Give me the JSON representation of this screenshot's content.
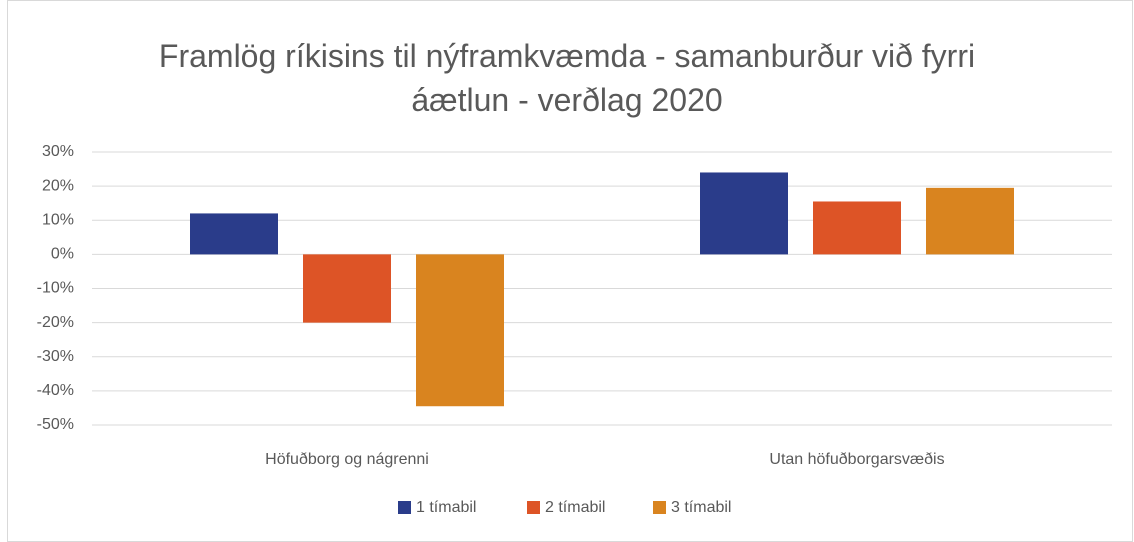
{
  "chart_data": {
    "type": "bar",
    "title": "Framlög ríkisins til nýframkvæmda - samanburður við fyrri áætlun - verðlag 2020",
    "categories": [
      "Höfuðborg og nágrenni",
      "Utan höfuðborgarsvæðis"
    ],
    "series": [
      {
        "name": "1 tímabil",
        "color": "#2a3c8a",
        "values": [
          12,
          24
        ]
      },
      {
        "name": "2 tímabil",
        "color": "#dd5426",
        "values": [
          -20,
          15.5
        ]
      },
      {
        "name": "3 tímabil",
        "color": "#d9841f",
        "values": [
          -44.5,
          19.5
        ]
      }
    ],
    "ylim": [
      -50,
      30
    ],
    "yticks": [
      {
        "value": 30,
        "label": "30%"
      },
      {
        "value": 20,
        "label": "20%"
      },
      {
        "value": 10,
        "label": "10%"
      },
      {
        "value": 0,
        "label": "0%"
      },
      {
        "value": -10,
        "label": "-10%"
      },
      {
        "value": -20,
        "label": "-20%"
      },
      {
        "value": -30,
        "label": "-30%"
      },
      {
        "value": -40,
        "label": "-40%"
      },
      {
        "value": -50,
        "label": "-50%"
      }
    ],
    "grid": true,
    "legend": "bottom"
  }
}
